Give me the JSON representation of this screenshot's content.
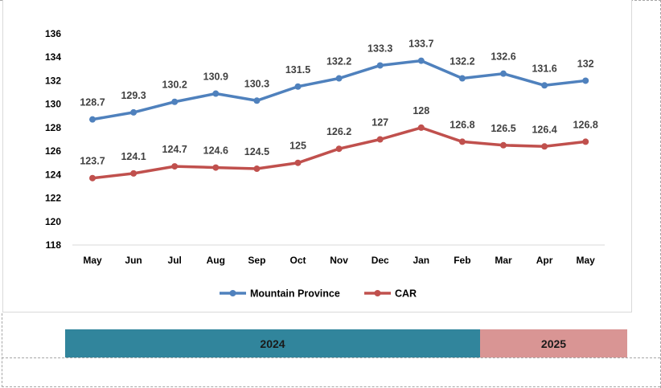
{
  "chart_data": {
    "type": "line",
    "categories": [
      "May",
      "Jun",
      "Jul",
      "Aug",
      "Sep",
      "Oct",
      "Nov",
      "Dec",
      "Jan",
      "Feb",
      "Mar",
      "Apr",
      "May"
    ],
    "series": [
      {
        "name": "Mountain Province",
        "color": "#4f81bd",
        "values": [
          128.7,
          129.3,
          130.2,
          130.9,
          130.3,
          131.5,
          132.2,
          133.3,
          133.7,
          132.2,
          132.6,
          131.6,
          132
        ]
      },
      {
        "name": "CAR",
        "color": "#c0504d",
        "values": [
          123.7,
          124.1,
          124.7,
          124.6,
          124.5,
          125,
          126.2,
          127,
          128,
          126.8,
          126.5,
          126.4,
          126.8
        ]
      }
    ],
    "y_ticks": [
      "136",
      "134",
      "132",
      "130",
      "128",
      "126",
      "124",
      "122",
      "120",
      "118"
    ],
    "ylim": [
      118,
      136
    ],
    "labels": {
      "Mountain Province": [
        "128.7",
        "129.3",
        "130.2",
        "130.9",
        "130.3",
        "131.5",
        "132.2",
        "133.3",
        "133.7",
        "132.2",
        "132.6",
        "131.6",
        "132"
      ],
      "CAR": [
        "123.7",
        "124.1",
        "124.7",
        "124.6",
        "124.5",
        "125",
        "126.2",
        "127",
        "128",
        "126.8",
        "126.5",
        "126.4",
        "126.8"
      ]
    },
    "legend_position": "bottom",
    "grid": false
  },
  "year_bands": [
    {
      "label": "2024",
      "color": "#31859c"
    },
    {
      "label": "2025",
      "color": "#d99594"
    }
  ]
}
